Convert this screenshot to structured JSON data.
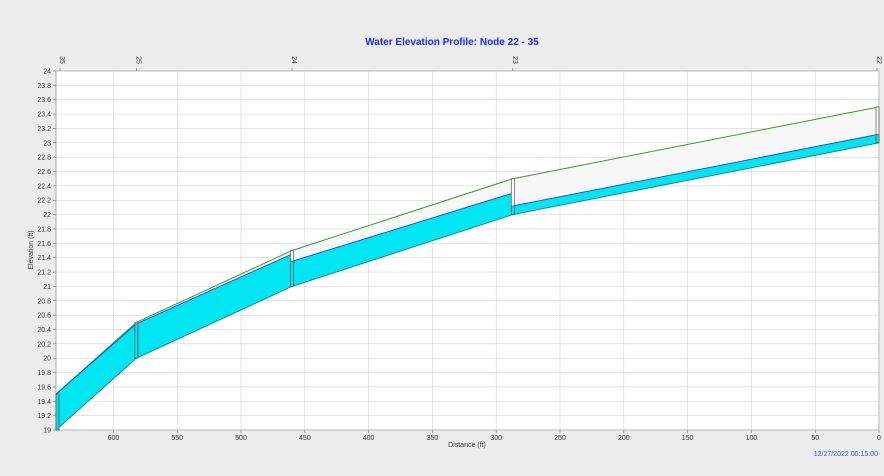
{
  "chart_data": {
    "type": "area",
    "title": "Water Elevation Profile: Node 22 - 35",
    "xlabel": "Distance (ft)",
    "ylabel": "Elevation (ft)",
    "timestamp": "12/27/2022 00:15:00",
    "x_reversed": true,
    "xlim": [
      645,
      0
    ],
    "ylim": [
      19,
      24
    ],
    "x_ticks": [
      600,
      550,
      500,
      450,
      400,
      350,
      300,
      250,
      200,
      150,
      100,
      50,
      0
    ],
    "y_ticks": [
      19,
      19.2,
      19.4,
      19.6,
      19.8,
      20,
      20.2,
      20.4,
      20.6,
      20.8,
      21,
      21.2,
      21.4,
      21.6,
      21.8,
      22,
      22.2,
      22.4,
      22.6,
      22.8,
      23,
      23.2,
      23.4,
      23.6,
      23.8,
      24
    ],
    "grid": true,
    "nodes": [
      {
        "name": "35",
        "distance": 645
      },
      {
        "name": "25",
        "distance": 582
      },
      {
        "name": "24",
        "distance": 460
      },
      {
        "name": "23",
        "distance": 287
      },
      {
        "name": "22",
        "distance": 0
      }
    ],
    "links": [
      {
        "from": 645,
        "to": 582,
        "invert_up": 19.0,
        "invert_down": 20.0,
        "crown_up": 19.5,
        "crown_down": 20.5,
        "water_up": 19.5,
        "water_down": 20.48
      },
      {
        "from": 582,
        "to": 460,
        "invert_up": 20.0,
        "invert_down": 21.0,
        "crown_up": 20.5,
        "crown_down": 21.5,
        "water_up": 20.48,
        "water_down": 21.45
      },
      {
        "from": 460,
        "to": 287,
        "invert_up": 21.0,
        "invert_down": 22.0,
        "crown_up": 21.5,
        "crown_down": 22.5,
        "water_up": 21.35,
        "water_down": 22.3
      },
      {
        "from": 287,
        "to": 0,
        "invert_up": 22.0,
        "invert_down": 23.0,
        "crown_up": 22.5,
        "crown_down": 23.5,
        "water_up": 22.12,
        "water_down": 23.12
      }
    ],
    "colors": {
      "water": "#00e5f2",
      "conduit_fill": "#f7f7f7",
      "crown_line": "#3a9a3a",
      "water_line": "#3040c8",
      "invert_line": "#1b7f8a",
      "node_wall": "#555555",
      "grid": "#c8c8c8",
      "title": "#1a2cff",
      "timestamp": "#3a52e0"
    }
  }
}
